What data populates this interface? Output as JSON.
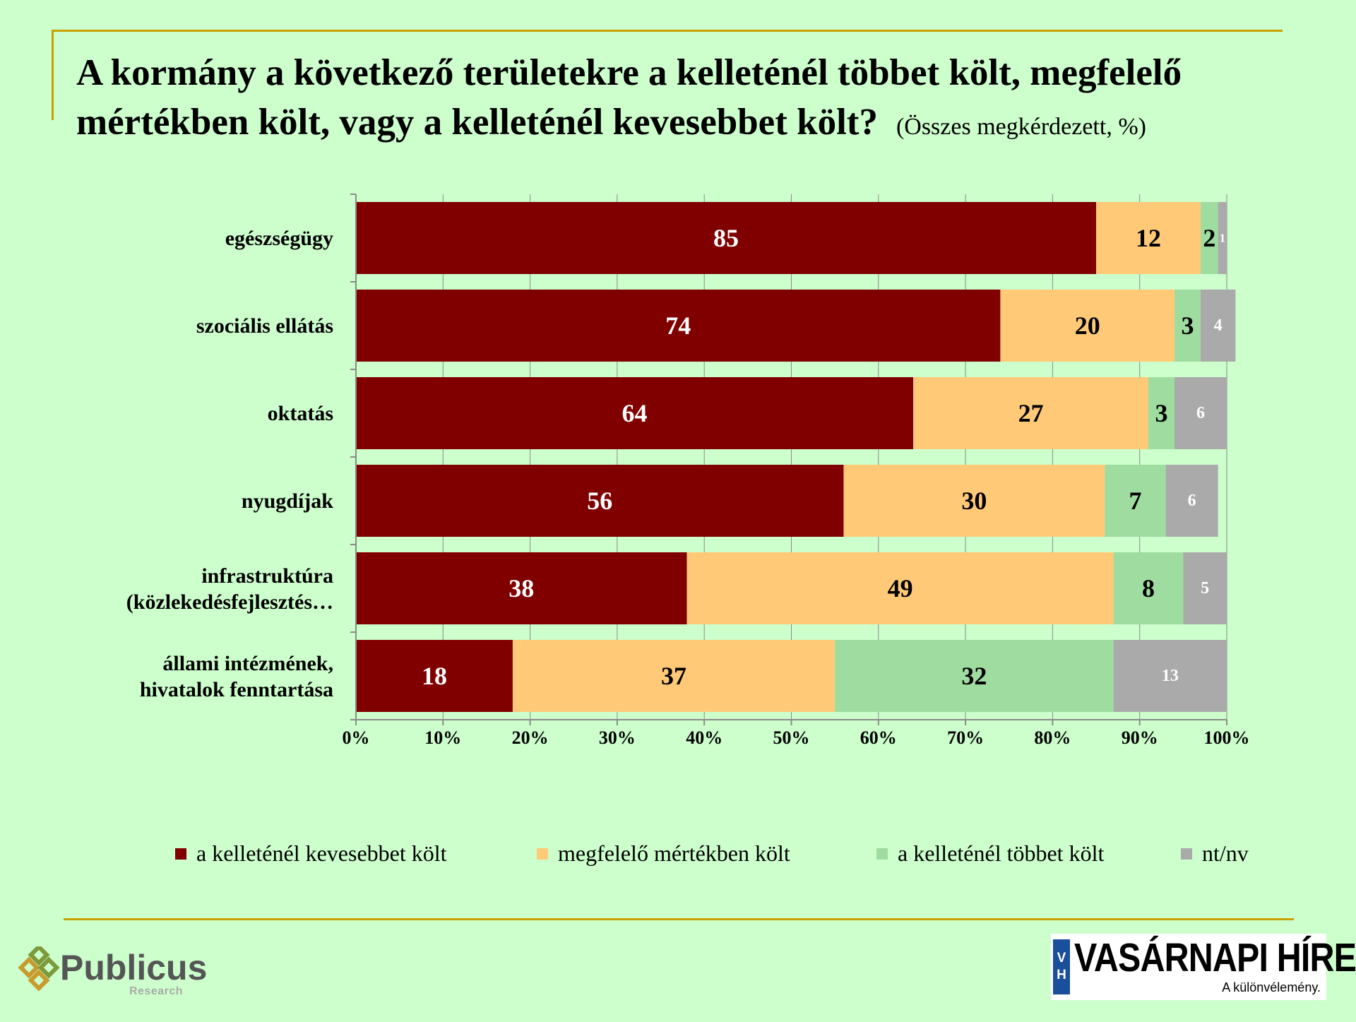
{
  "title_main": "A kormány a következő területekre a kelleténél többet költ, megfelelő mértékben költ, vagy a kelleténél kevesebbet költ?",
  "title_note": "(Összes megkérdezett, %)",
  "chart_data": {
    "type": "bar",
    "orientation": "horizontal",
    "stacked": true,
    "categories": [
      "egészségügy",
      "szociális ellátás",
      "oktatás",
      "nyugdíjak",
      "infrastruktúra (közlekedésfejlesztés…",
      "állami intézmének, hivatalok fenntartása"
    ],
    "series": [
      {
        "name": "a kelleténél kevesebbet költ",
        "color": "#800000",
        "values": [
          85,
          74,
          64,
          56,
          38,
          18
        ]
      },
      {
        "name": "megfelelő mértékben költ",
        "color": "#ffc977",
        "values": [
          12,
          20,
          27,
          30,
          49,
          37
        ]
      },
      {
        "name": "a kelleténél többet költ",
        "color": "#9fdc9f",
        "values": [
          2,
          3,
          3,
          7,
          8,
          32
        ]
      },
      {
        "name": "nt/nv",
        "color": "#aaaaaa",
        "values": [
          1,
          4,
          6,
          6,
          5,
          13
        ]
      }
    ],
    "xlim": [
      0,
      100
    ],
    "x_ticks": [
      "0%",
      "10%",
      "20%",
      "30%",
      "40%",
      "50%",
      "60%",
      "70%",
      "80%",
      "90%",
      "100%"
    ],
    "grid": true,
    "legend": "bottom"
  },
  "logos": {
    "publicus_name": "Publicus",
    "publicus_sub": "Research",
    "vh_badge_top": "V",
    "vh_badge_bottom": "H",
    "vh_name": "VASÁRNAPI HÍREK",
    "vh_tagline": "A különvélemény."
  }
}
